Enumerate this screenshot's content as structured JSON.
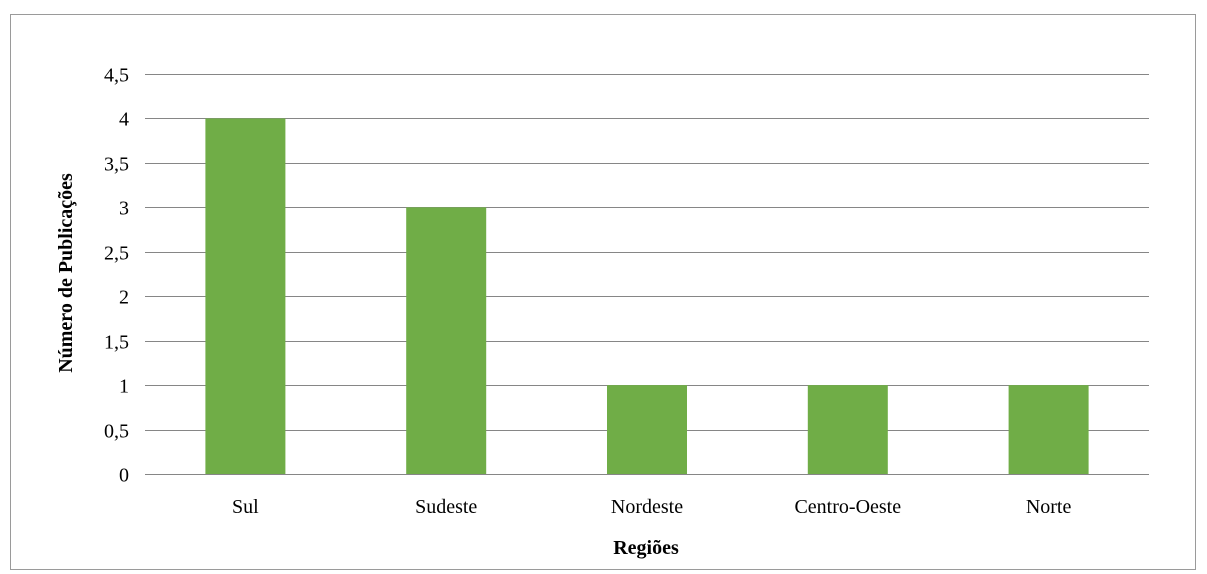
{
  "chart_data": {
    "type": "bar",
    "categories": [
      "Sul",
      "Sudeste",
      "Nordeste",
      "Centro-Oeste",
      "Norte"
    ],
    "values": [
      4,
      3,
      1,
      1,
      1
    ],
    "xlabel": "Regiões",
    "ylabel": "Número de Publicações",
    "ylim": [
      0,
      4.5
    ],
    "yticks": [
      "0",
      "0,5",
      "1",
      "1,5",
      "2",
      "2,5",
      "3",
      "3,5",
      "4",
      "4,5"
    ],
    "grid": true,
    "legend": "none",
    "colors": {
      "bar": "#70ad47",
      "grid": "#868686"
    }
  }
}
